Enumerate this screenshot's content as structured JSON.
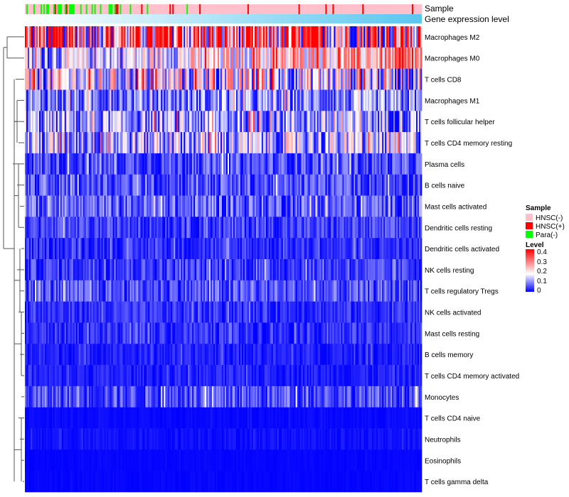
{
  "chart_data": {
    "type": "heatmap",
    "title": "",
    "annotations": [
      {
        "name": "Sample",
        "categories": [
          "HNSC(-)",
          "HNSC(+)",
          "Para(-)"
        ],
        "colors": [
          "#ffc0cb",
          "#ff0000",
          "#00ff00"
        ]
      },
      {
        "name": "Gene expression level",
        "gradient": [
          "#ffffff",
          "#5bc6ef"
        ]
      }
    ],
    "rows": [
      "Macrophages M2",
      "Macrophages M0",
      "T cells CD8",
      "Macrophages M1",
      "T cells follicular helper",
      "T cells CD4 memory resting",
      "Plasma cells",
      "B cells naive",
      "Mast cells activated",
      "Dendritic cells resting",
      "Dendritic cells activated",
      "NK cells resting",
      "T cells regulatory  Tregs",
      "NK cells activated",
      "Mast cells resting",
      "B cells memory",
      "T cells CD4 memory activated",
      "Monocytes",
      "T cells CD4 naive",
      "Neutrophils",
      "Eosinophils",
      "T cells gamma delta"
    ],
    "row_mean_level": [
      0.25,
      0.11,
      0.15,
      0.08,
      0.1,
      0.12,
      0.05,
      0.05,
      0.06,
      0.04,
      0.03,
      0.04,
      0.05,
      0.03,
      0.03,
      0.02,
      0.02,
      0.05,
      0.005,
      0.01,
      0.003,
      0.003
    ],
    "legend": {
      "sample_title": "Sample",
      "sample_labels": [
        "HNSC(-)",
        "HNSC(+)",
        "Para(-)"
      ],
      "level_title": "Level",
      "level_ticks": [
        "0.4",
        "0.3",
        "0.2",
        "0.1",
        "0"
      ],
      "level_range": [
        0,
        0.4
      ],
      "level_colors": [
        "#0000ff",
        "#ffffff",
        "#ff0000"
      ],
      "placement": "right"
    }
  }
}
